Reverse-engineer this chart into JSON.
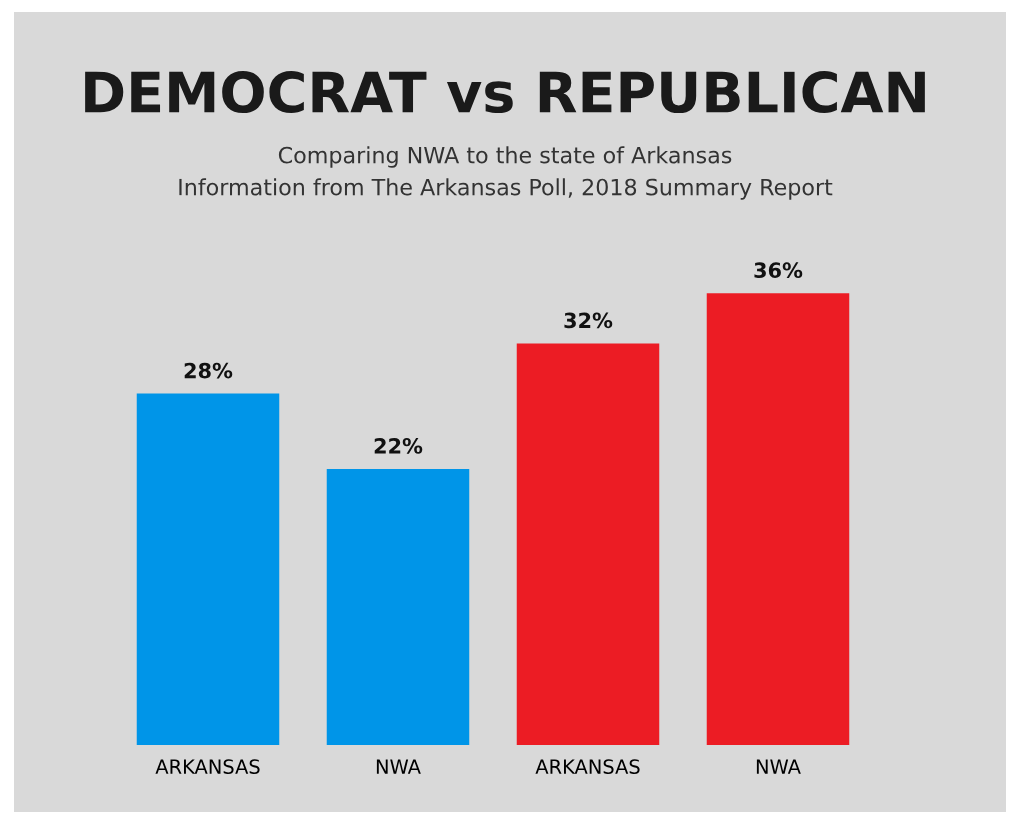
{
  "chart_data": {
    "type": "bar",
    "title": "DEMOCRAT vs REPUBLICAN",
    "subtitle": "Comparing NWA to the state of Arkansas",
    "annotations": [
      "Information from The Arkansas Poll, 2018 Summary Report"
    ],
    "categories": [
      "ARKANSAS",
      "NWA",
      "ARKANSAS",
      "NWA"
    ],
    "values": [
      28,
      22,
      32,
      36
    ],
    "colors": [
      "#0095e8",
      "#0095e8",
      "#ec1c24",
      "#ec1c24"
    ],
    "value_labels": [
      "28%",
      "22%",
      "32%",
      "36%"
    ],
    "tick_labels": "x",
    "grid": false,
    "legend": false
  }
}
